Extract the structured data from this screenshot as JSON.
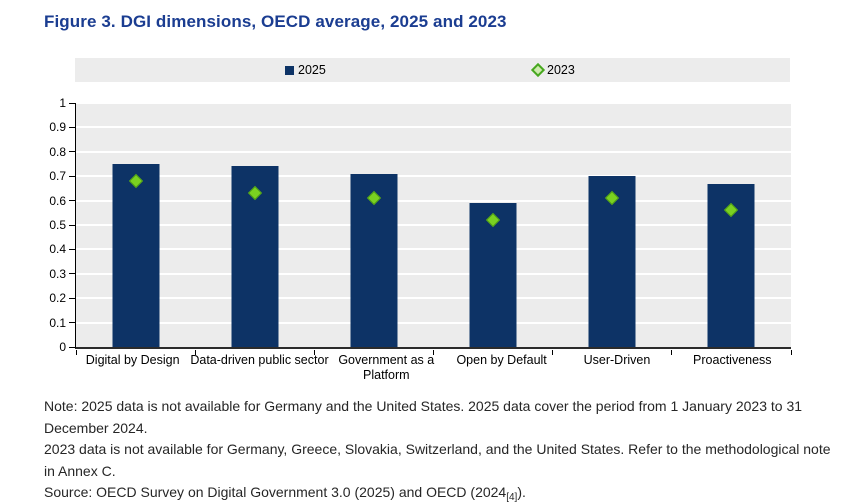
{
  "figure": {
    "title": "Figure 3. DGI dimensions, OECD average, 2025 and 2023",
    "title_color": "#1b3d91"
  },
  "legend": {
    "items": [
      {
        "label": "2025",
        "marker": "square-icon",
        "color": "#0d3366"
      },
      {
        "label": "2023",
        "marker": "diamond-icon",
        "color": "#46a71f"
      }
    ]
  },
  "chart_data": {
    "type": "bar",
    "title": "Figure 3. DGI dimensions, OECD average, 2025 and 2023",
    "categories": [
      "Digital by Design",
      "Data-driven public sector",
      "Government as a Platform",
      "Open by Default",
      "User-Driven",
      "Proactiveness"
    ],
    "x_labels": [
      [
        "Digital by Design"
      ],
      [
        "Data-driven public sector"
      ],
      [
        "Government as a",
        "Platform"
      ],
      [
        "Open by Default"
      ],
      [
        "User-Driven"
      ],
      [
        "Proactiveness"
      ]
    ],
    "series": [
      {
        "name": "2025",
        "type": "bar",
        "color": "#0d3366",
        "values": [
          0.75,
          0.74,
          0.71,
          0.59,
          0.7,
          0.67
        ]
      },
      {
        "name": "2023",
        "type": "scatter",
        "marker": "diamond",
        "color": "#7ad121",
        "values": [
          0.68,
          0.63,
          0.61,
          0.52,
          0.61,
          0.56
        ]
      }
    ],
    "xlabel": "",
    "ylabel": "",
    "ylim": [
      0,
      1
    ],
    "y_ticks": [
      "0",
      "0.1",
      "0.2",
      "0.3",
      "0.4",
      "0.5",
      "0.6",
      "0.7",
      "0.8",
      "0.9",
      "1"
    ],
    "grid": "horizontal",
    "grid_color": "#ffffff",
    "plot_background": "#ececec",
    "legend_position": "top"
  },
  "notes": {
    "line1": "Note: 2025 data is not available for Germany and the United States. 2025 data cover the period from 1 January 2023 to 31 December 2024.",
    "line2": "2023 data is not available for Germany, Greece, Slovakia, Switzerland, and the United States. Refer to the methodological note in Annex C.",
    "source_prefix": "Source: OECD Survey on Digital Government 3.0 (2025) and OECD (2024",
    "source_subscript": "[4]",
    "source_suffix": ")."
  }
}
